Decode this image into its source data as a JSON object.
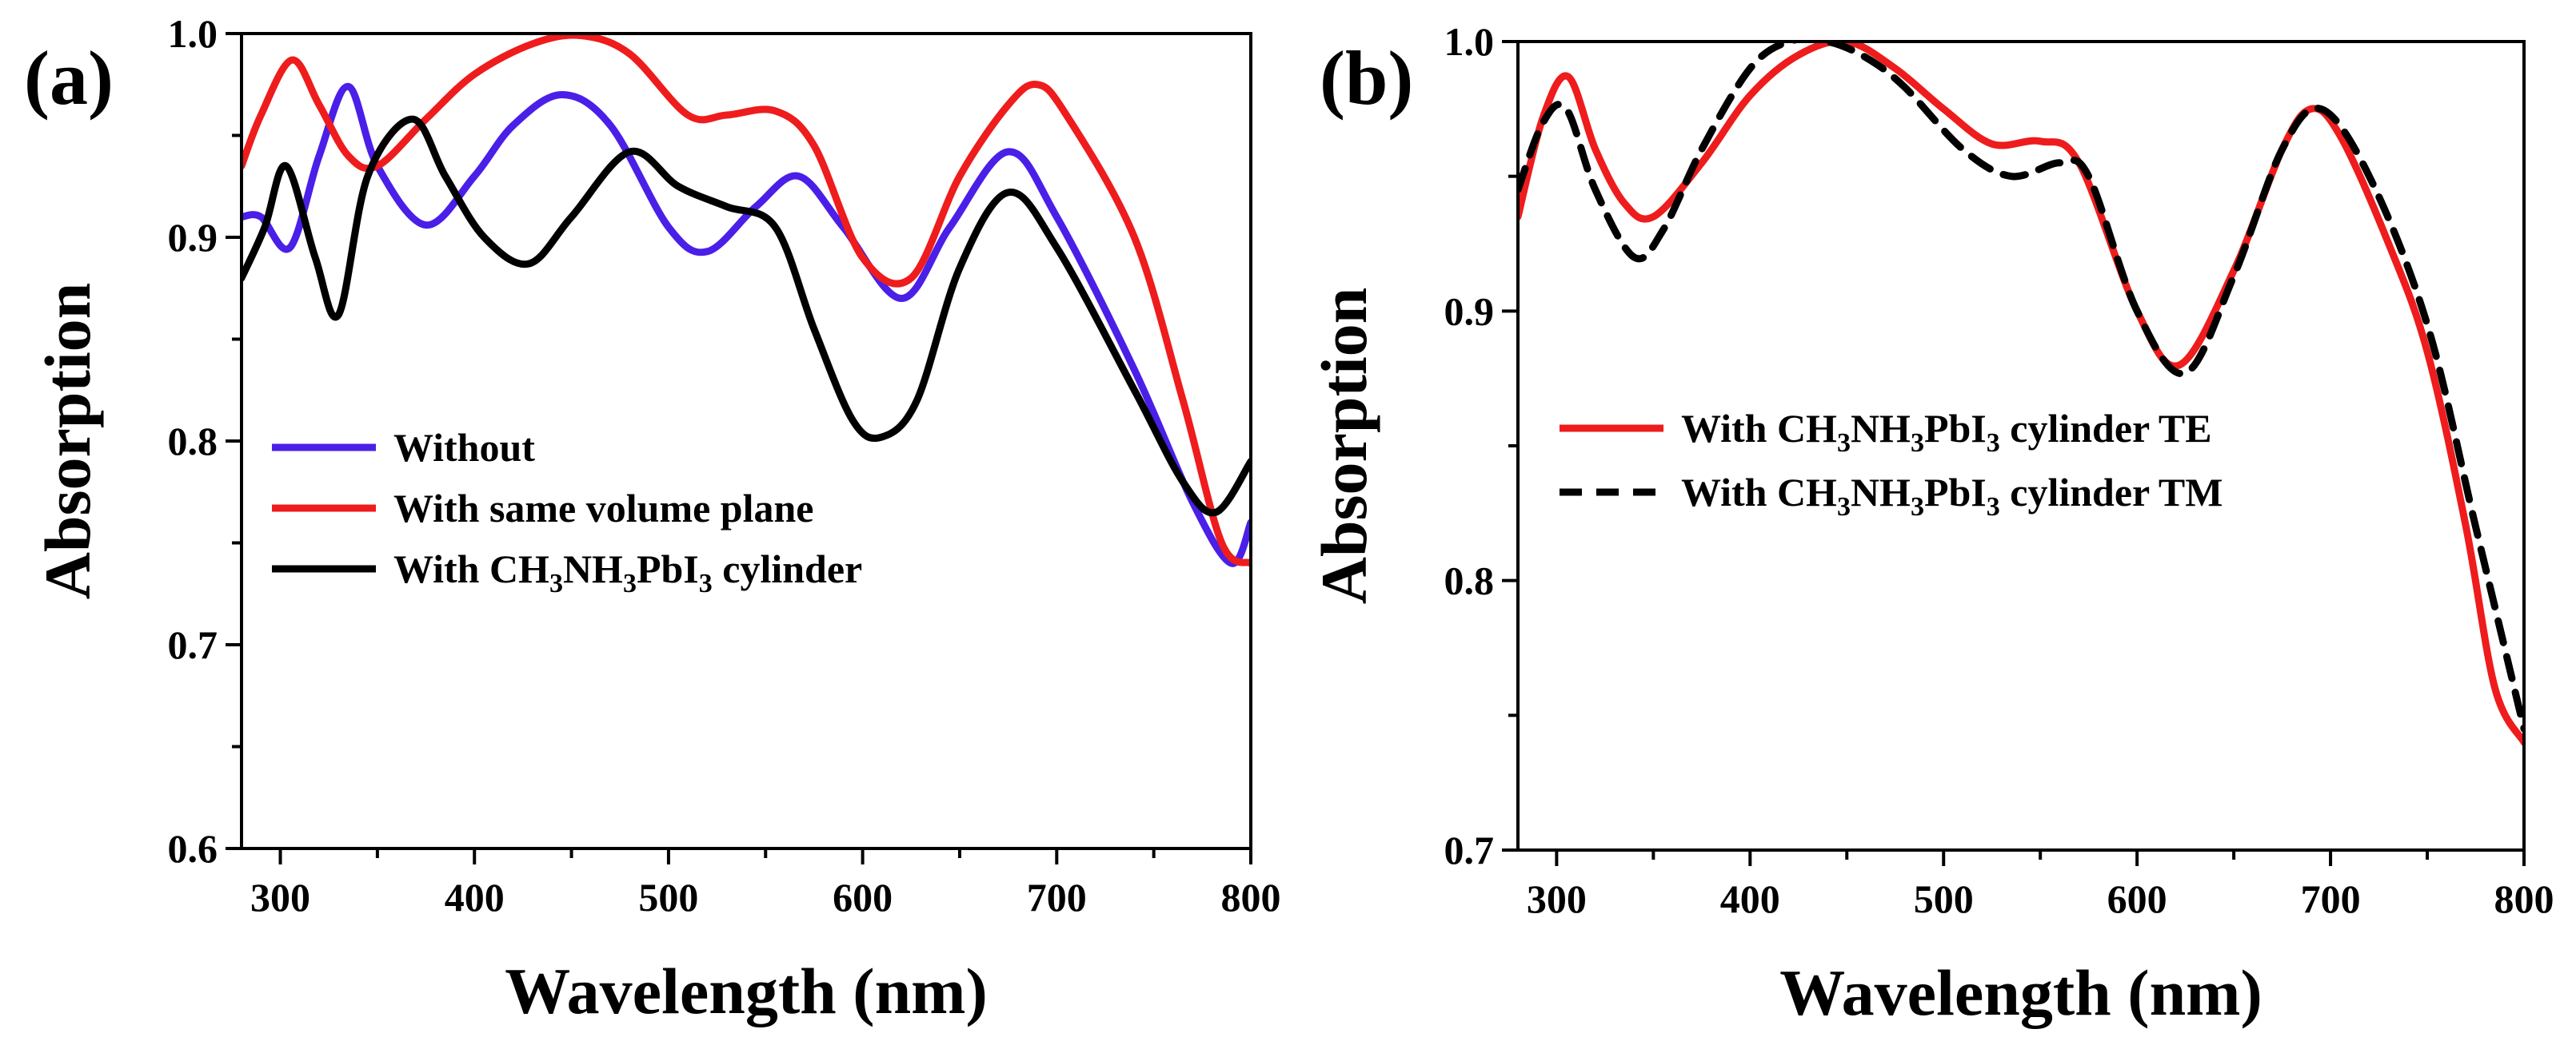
{
  "chart_data": [
    {
      "type": "line",
      "panel_label": "(a)",
      "xlabel": "Wavelength (nm)",
      "ylabel": "Absorption",
      "xlim": [
        280,
        800
      ],
      "ylim": [
        0.6,
        1.0
      ],
      "xticks": [
        300,
        400,
        500,
        600,
        700,
        800
      ],
      "yticks": [
        0.6,
        0.7,
        0.8,
        0.9,
        1.0
      ],
      "ytick_labels": [
        "0.6",
        "0.7",
        "0.8",
        "0.9",
        "1.0"
      ],
      "legend_position": "lower-left",
      "series": [
        {
          "name": "Without",
          "legend": {
            "pre": "Without",
            "parts": []
          },
          "color": "#4a1fe8",
          "dash": "solid",
          "x": [
            280,
            290,
            305,
            320,
            335,
            350,
            375,
            400,
            420,
            445,
            470,
            500,
            520,
            545,
            567,
            590,
            620,
            645,
            675,
            700,
            740,
            770,
            790,
            800
          ],
          "y": [
            0.91,
            0.91,
            0.895,
            0.94,
            0.974,
            0.935,
            0.906,
            0.93,
            0.955,
            0.97,
            0.955,
            0.905,
            0.893,
            0.915,
            0.93,
            0.905,
            0.87,
            0.905,
            0.942,
            0.91,
            0.835,
            0.77,
            0.74,
            0.76
          ]
        },
        {
          "name": "With same volume plane",
          "legend": {
            "pre": "With same volume plane",
            "parts": []
          },
          "color": "#ee1c1c",
          "dash": "solid",
          "x": [
            280,
            290,
            306,
            320,
            335,
            350,
            375,
            400,
            430,
            455,
            480,
            510,
            530,
            555,
            575,
            600,
            625,
            650,
            675,
            690,
            705,
            740,
            765,
            785,
            800
          ],
          "y": [
            0.935,
            0.96,
            0.987,
            0.965,
            0.94,
            0.935,
            0.958,
            0.98,
            0.995,
            0.999,
            0.99,
            0.96,
            0.96,
            0.962,
            0.945,
            0.89,
            0.88,
            0.93,
            0.965,
            0.975,
            0.96,
            0.9,
            0.82,
            0.75,
            0.74
          ]
        },
        {
          "name": "With CH3NH3PbI3 cylinder",
          "legend": {
            "pre": "With CH",
            "parts": [
              {
                "sub": "3",
                "text": "NH"
              },
              {
                "sub": "3",
                "text": "PbI"
              },
              {
                "sub": "3",
                "text": " cylinder"
              }
            ]
          },
          "color": "#000000",
          "dash": "solid",
          "x": [
            280,
            292,
            303,
            318,
            330,
            345,
            368,
            385,
            405,
            428,
            450,
            480,
            505,
            530,
            555,
            575,
            595,
            610,
            628,
            650,
            675,
            700,
            740,
            765,
            782,
            800
          ],
          "y": [
            0.88,
            0.905,
            0.935,
            0.89,
            0.862,
            0.93,
            0.958,
            0.93,
            0.9,
            0.887,
            0.91,
            0.942,
            0.925,
            0.915,
            0.905,
            0.855,
            0.81,
            0.802,
            0.82,
            0.885,
            0.922,
            0.895,
            0.825,
            0.78,
            0.765,
            0.79
          ]
        }
      ]
    },
    {
      "type": "line",
      "panel_label": "(b)",
      "xlabel": "Wavelength (nm)",
      "ylabel": "Absorption",
      "xlim": [
        280,
        800
      ],
      "ylim": [
        0.7,
        1.0
      ],
      "xticks": [
        300,
        400,
        500,
        600,
        700,
        800
      ],
      "yticks": [
        0.7,
        0.8,
        0.9,
        1.0
      ],
      "ytick_labels": [
        "0.7",
        "0.8",
        "0.9",
        "1.0"
      ],
      "legend_position": "center-left",
      "series": [
        {
          "name": "With CH3NH3PbI3 cylinder TE",
          "legend": {
            "pre": "With CH",
            "parts": [
              {
                "sub": "3",
                "text": "NH"
              },
              {
                "sub": "3",
                "text": "PbI"
              },
              {
                "sub": "3",
                "text": " cylinder TE"
              }
            ]
          },
          "color": "#ee1c1c",
          "dash": "solid",
          "x": [
            280,
            293,
            306,
            320,
            335,
            350,
            375,
            400,
            425,
            450,
            475,
            500,
            525,
            550,
            570,
            600,
            622,
            650,
            675,
            690,
            705,
            730,
            750,
            770,
            785,
            800
          ],
          "y": [
            0.935,
            0.972,
            0.987,
            0.96,
            0.94,
            0.935,
            0.955,
            0.98,
            0.995,
            1.0,
            0.99,
            0.975,
            0.962,
            0.963,
            0.955,
            0.9,
            0.88,
            0.915,
            0.96,
            0.975,
            0.965,
            0.925,
            0.885,
            0.82,
            0.76,
            0.74
          ]
        },
        {
          "name": "With CH3NH3PbI3 cylinder TM",
          "legend": {
            "pre": "With CH",
            "parts": [
              {
                "sub": "3",
                "text": "NH"
              },
              {
                "sub": "3",
                "text": "PbI"
              },
              {
                "sub": "3",
                "text": " cylinder TM"
              }
            ]
          },
          "color": "#000000",
          "dash": "dashed",
          "x": [
            280,
            293,
            305,
            320,
            340,
            355,
            375,
            400,
            420,
            440,
            460,
            480,
            510,
            535,
            560,
            575,
            600,
            625,
            650,
            675,
            695,
            720,
            750,
            775,
            800
          ],
          "y": [
            0.945,
            0.97,
            0.975,
            0.945,
            0.92,
            0.93,
            0.96,
            0.99,
            1.0,
            1.0,
            0.994,
            0.983,
            0.96,
            0.95,
            0.955,
            0.95,
            0.9,
            0.877,
            0.913,
            0.96,
            0.975,
            0.95,
            0.895,
            0.82,
            0.745
          ]
        }
      ]
    }
  ]
}
